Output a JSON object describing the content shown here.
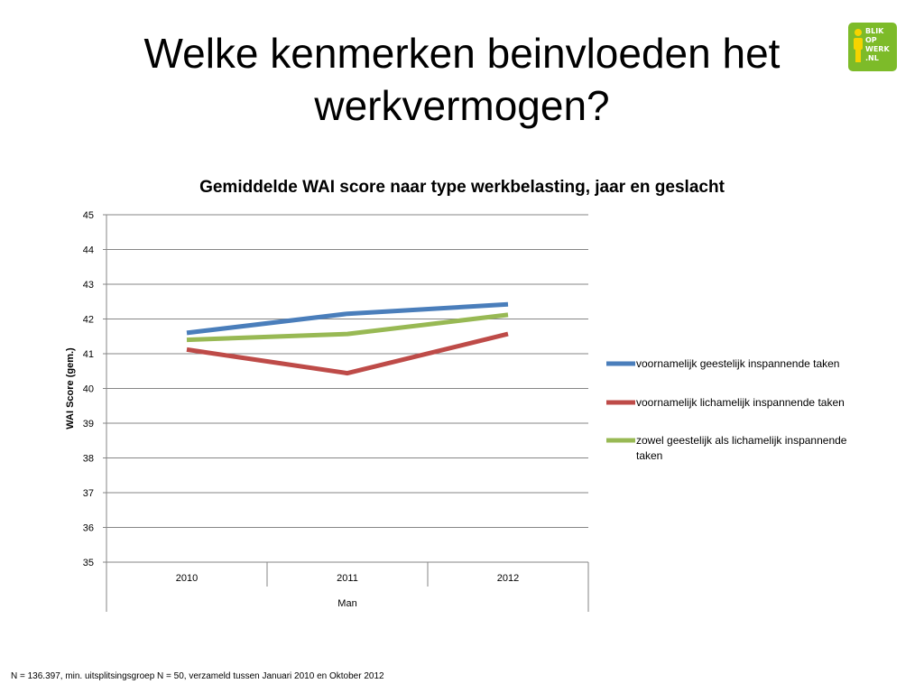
{
  "slide": {
    "title": "Welke kenmerken beinvloeden het werkvermogen?",
    "footnote": "N = 136.397, min. uitsplitsingsgroep N = 50, verzameld tussen Januari 2010 en Oktober 2012"
  },
  "logo": {
    "lines": [
      "BLIK",
      "OP",
      "WERK",
      ".NL"
    ],
    "color": "#7dbb29"
  },
  "chart_data": {
    "type": "line",
    "title": "Gemiddelde WAI score naar type werkbelasting, jaar en geslacht",
    "ylabel": "WAI Score (gem.)",
    "xlabel": "",
    "categories": [
      "2010",
      "2011",
      "2012"
    ],
    "category_group": "Man",
    "ylim": [
      35,
      45
    ],
    "yticks": [
      35,
      36,
      37,
      38,
      39,
      40,
      41,
      42,
      43,
      44,
      45
    ],
    "grid": true,
    "legend_position": "right",
    "series": [
      {
        "name": "voornamelijk geestelijk inspannende taken",
        "values": [
          41.6,
          42.15,
          42.42
        ],
        "color": "#4a7ebb"
      },
      {
        "name": "voornamelijk lichamelijk inspannende taken",
        "values": [
          41.12,
          40.44,
          41.57
        ],
        "color": "#be4b48"
      },
      {
        "name": "zowel geestelijk als lichamelijk inspannende taken",
        "values": [
          41.4,
          41.57,
          42.12
        ],
        "color": "#98b954"
      }
    ]
  }
}
